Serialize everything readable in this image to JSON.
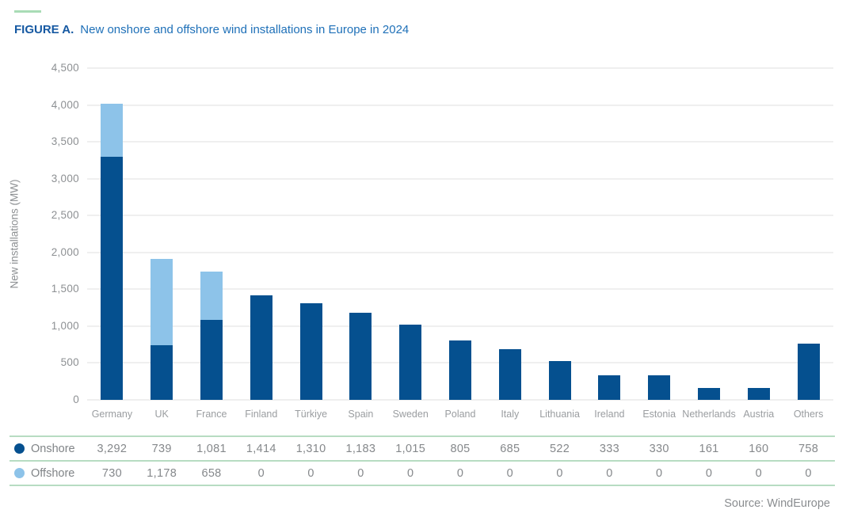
{
  "header": {
    "figure_label": "FIGURE A.",
    "title": "New onshore and offshore wind installations in Europe in 2024"
  },
  "chart_data": {
    "type": "bar",
    "stacked": true,
    "title": "New onshore and offshore wind installations in Europe in 2024",
    "categories": [
      "Germany",
      "UK",
      "France",
      "Finland",
      "Türkiye",
      "Spain",
      "Sweden",
      "Poland",
      "Italy",
      "Lithuania",
      "Ireland",
      "Estonia",
      "Netherlands",
      "Austria",
      "Others"
    ],
    "series": [
      {
        "name": "Onshore",
        "color": "#05508f",
        "values": [
          3292,
          739,
          1081,
          1414,
          1310,
          1183,
          1015,
          805,
          685,
          522,
          333,
          330,
          161,
          160,
          758
        ]
      },
      {
        "name": "Offshore",
        "color": "#8dc3e9",
        "values": [
          730,
          1178,
          658,
          0,
          0,
          0,
          0,
          0,
          0,
          0,
          0,
          0,
          0,
          0,
          0
        ]
      }
    ],
    "xlabel": "",
    "ylabel": "New installations (MW)",
    "ylim": [
      0,
      4500
    ],
    "ytick_step": 500,
    "grid": true,
    "legend_position": "table-below"
  },
  "table": {
    "rows": [
      {
        "label": "Onshore",
        "dot_color": "#05508f",
        "values": [
          "3,292",
          "739",
          "1,081",
          "1,414",
          "1,310",
          "1,183",
          "1,015",
          "805",
          "685",
          "522",
          "333",
          "330",
          "161",
          "160",
          "758"
        ]
      },
      {
        "label": "Offshore",
        "dot_color": "#8dc3e9",
        "values": [
          "730",
          "1,178",
          "658",
          "0",
          "0",
          "0",
          "0",
          "0",
          "0",
          "0",
          "0",
          "0",
          "0",
          "0",
          "0"
        ]
      }
    ]
  },
  "source": "Source: WindEurope",
  "colors": {
    "onshore": "#05508f",
    "offshore": "#8dc3e9",
    "accent_green": "#a9dcb6",
    "table_border_green": "#b7dcc2",
    "figure_label_blue": "#1659a2",
    "title_blue": "#1e70b8",
    "axis_gray": "#8d9093",
    "gridline": "#efefef"
  }
}
